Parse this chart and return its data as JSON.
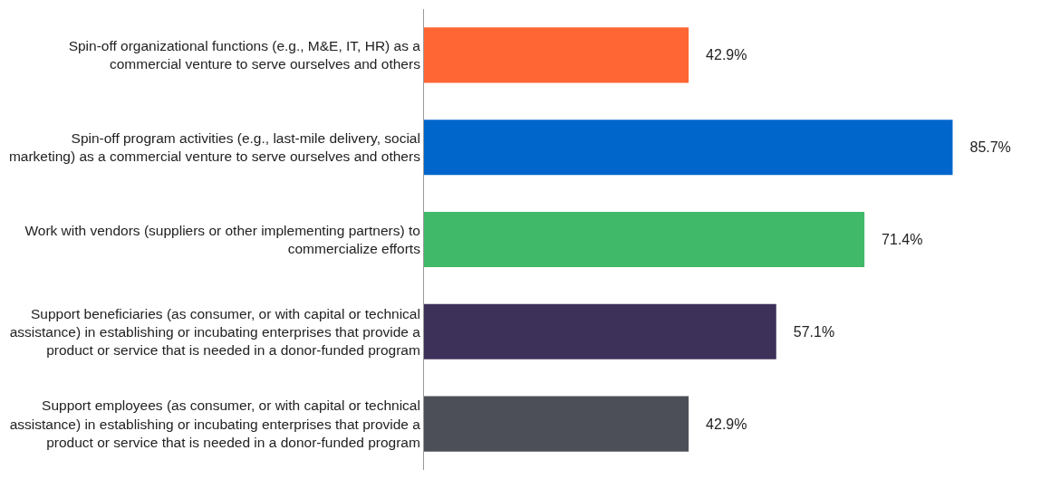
{
  "chart_data": {
    "type": "bar",
    "orientation": "horizontal",
    "categories": [
      "Spin-off organizational functions (e.g., M&E, IT, HR) as a commercial venture to serve ourselves and others",
      "Spin-off program activities (e.g., last-mile delivery, social marketing) as a commercial venture to serve ourselves and others",
      "Work with vendors (suppliers or other implementing partners) to commercialize efforts",
      "Support beneficiaries (as consumer, or with capital or technical assistance) in establishing or incubating enterprises that provide a product or service that is needed in a donor-funded program",
      "Support employees (as consumer, or with capital or technical assistance) in establishing or incubating enterprises that provide a product or service that is needed in a donor-funded program"
    ],
    "values": [
      42.9,
      85.7,
      71.4,
      57.1,
      42.9
    ],
    "colors": [
      "#ff6633",
      "#0066cc",
      "#40b968",
      "#3d3059",
      "#4d4f58"
    ],
    "value_labels": [
      "42.9%",
      "85.7%",
      "71.4%",
      "57.1%",
      "42.9%"
    ],
    "data_labels": true
  }
}
